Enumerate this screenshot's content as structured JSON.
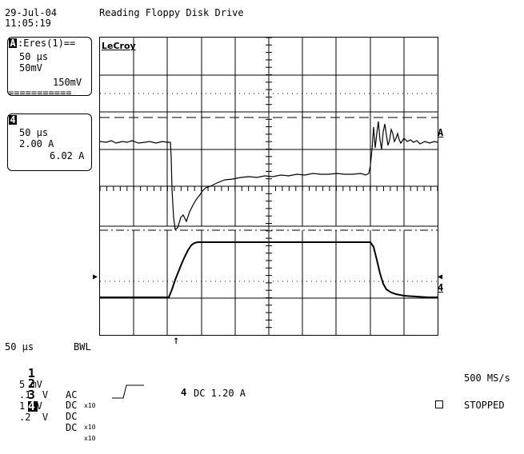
{
  "header": {
    "date": "29-Jul-04",
    "time": "11:05:19",
    "title": "Reading Floppy Disk Drive"
  },
  "trace_a": {
    "badge": "A",
    "label": ":Eres(1)==",
    "timebase": "50 μs",
    "vdiv": "50mV",
    "value": "150mV",
    "separator": "==========="
  },
  "trace_4": {
    "badge": "4",
    "timebase": "50 μs",
    "vdiv": "2.00 A",
    "value": "6.02 A"
  },
  "screen": {
    "brand": "LeCroy",
    "marker_a": "A",
    "marker_4": "4",
    "trigger_arrow": "↑"
  },
  "bottom": {
    "timebase": "50 μs",
    "bwl": "BWL",
    "channels": [
      {
        "num": "1",
        "scale": "5 mV",
        "coupling": "AC",
        "attn": "x10"
      },
      {
        "num": "2",
        "scale": ".1  V",
        "coupling": "DC",
        "attn": ""
      },
      {
        "num": "3",
        "scale": "1  V",
        "coupling": "DC",
        "attn": "x10"
      },
      {
        "num": "4",
        "scale": ".2  V",
        "coupling": "DC",
        "attn": "x10"
      }
    ],
    "trigger_channel": "4",
    "trigger_text": "DC 1.20 A",
    "sample_rate": "500 MS/s",
    "status": "STOPPED"
  },
  "colors": {
    "trace": "#000000",
    "background": "#ffffff",
    "grid": "#000000"
  }
}
